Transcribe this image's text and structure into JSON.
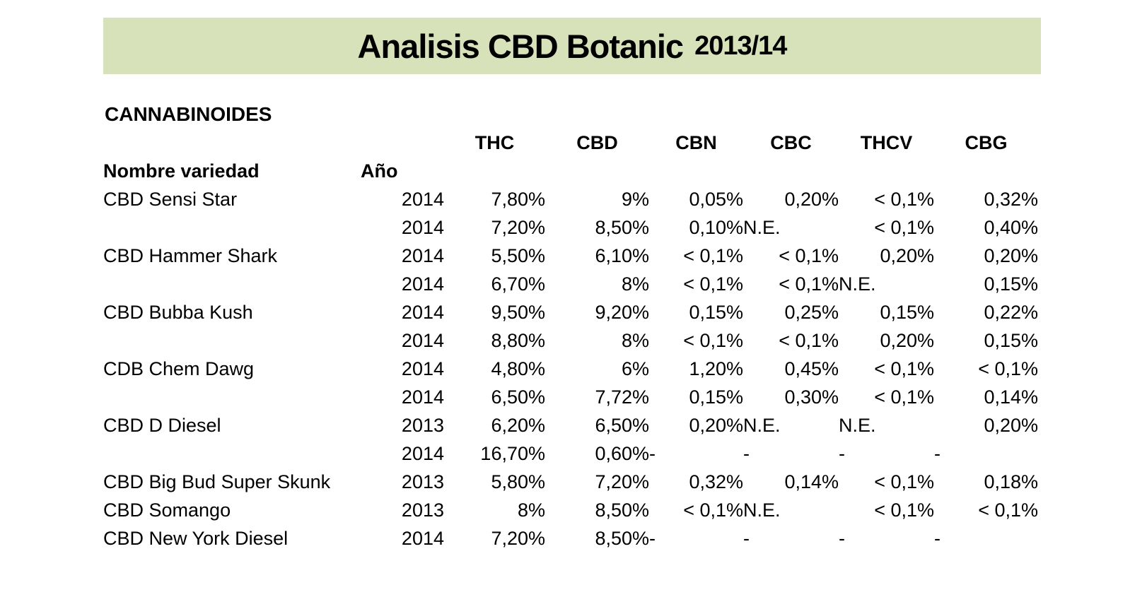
{
  "title": {
    "main": "Analisis CBD Botanic",
    "suffix": "2013/14"
  },
  "section_heading": "CANNABINOIDES",
  "table": {
    "name_header": "Nombre variedad",
    "year_header": "Año",
    "columns": [
      "THC",
      "CBD",
      "CBN",
      "CBC",
      "THCV",
      "CBG"
    ],
    "rows": [
      {
        "name": "CBD Sensi Star",
        "year": "2014",
        "values": [
          "7,80%",
          "9%",
          "0,05%",
          "0,20%",
          "< 0,1%",
          "0,32%"
        ]
      },
      {
        "name": "",
        "year": "2014",
        "values": [
          "7,20%",
          "8,50%",
          "0,10%",
          "N.E.",
          "< 0,1%",
          "0,40%"
        ]
      },
      {
        "name": "CBD Hammer Shark",
        "year": "2014",
        "values": [
          "5,50%",
          "6,10%",
          "< 0,1%",
          "< 0,1%",
          "0,20%",
          "0,20%"
        ]
      },
      {
        "name": "",
        "year": "2014",
        "values": [
          "6,70%",
          "8%",
          "< 0,1%",
          "< 0,1%",
          "N.E.",
          "0,15%"
        ]
      },
      {
        "name": "CBD Bubba Kush",
        "year": "2014",
        "values": [
          "9,50%",
          "9,20%",
          "0,15%",
          "0,25%",
          "0,15%",
          "0,22%"
        ]
      },
      {
        "name": "",
        "year": "2014",
        "values": [
          "8,80%",
          "8%",
          "< 0,1%",
          "< 0,1%",
          "0,20%",
          "0,15%"
        ]
      },
      {
        "name": "CDB Chem Dawg",
        "year": "2014",
        "values": [
          "4,80%",
          "6%",
          "1,20%",
          "0,45%",
          "< 0,1%",
          "< 0,1%"
        ]
      },
      {
        "name": "",
        "year": "2014",
        "values": [
          "6,50%",
          "7,72%",
          "0,15%",
          "0,30%",
          "< 0,1%",
          "0,14%"
        ]
      },
      {
        "name": "CBD D Diesel",
        "year": "2013",
        "values": [
          "6,20%",
          "6,50%",
          "0,20%",
          "N.E.",
          "N.E.",
          "0,20%"
        ]
      },
      {
        "name": "",
        "year": "2014",
        "values": [
          "16,70%",
          "0,60%",
          "-",
          "-",
          "-",
          "-"
        ]
      },
      {
        "name": "CBD Big Bud Super Skunk",
        "year": "2013",
        "values": [
          "5,80%",
          "7,20%",
          "0,32%",
          "0,14%",
          "< 0,1%",
          "0,18%"
        ]
      },
      {
        "name": "CBD Somango",
        "year": "2013",
        "values": [
          "8%",
          "8,50%",
          "< 0,1%",
          "N.E.",
          "< 0,1%",
          "< 0,1%"
        ]
      },
      {
        "name": "CBD New York Diesel",
        "year": "2014",
        "values": [
          "7,20%",
          "8,50%",
          "-",
          "-",
          "-",
          "-"
        ]
      }
    ]
  },
  "colors": {
    "title_bg": "#d7e2ba",
    "text": "#000000",
    "page_bg": "#ffffff"
  }
}
